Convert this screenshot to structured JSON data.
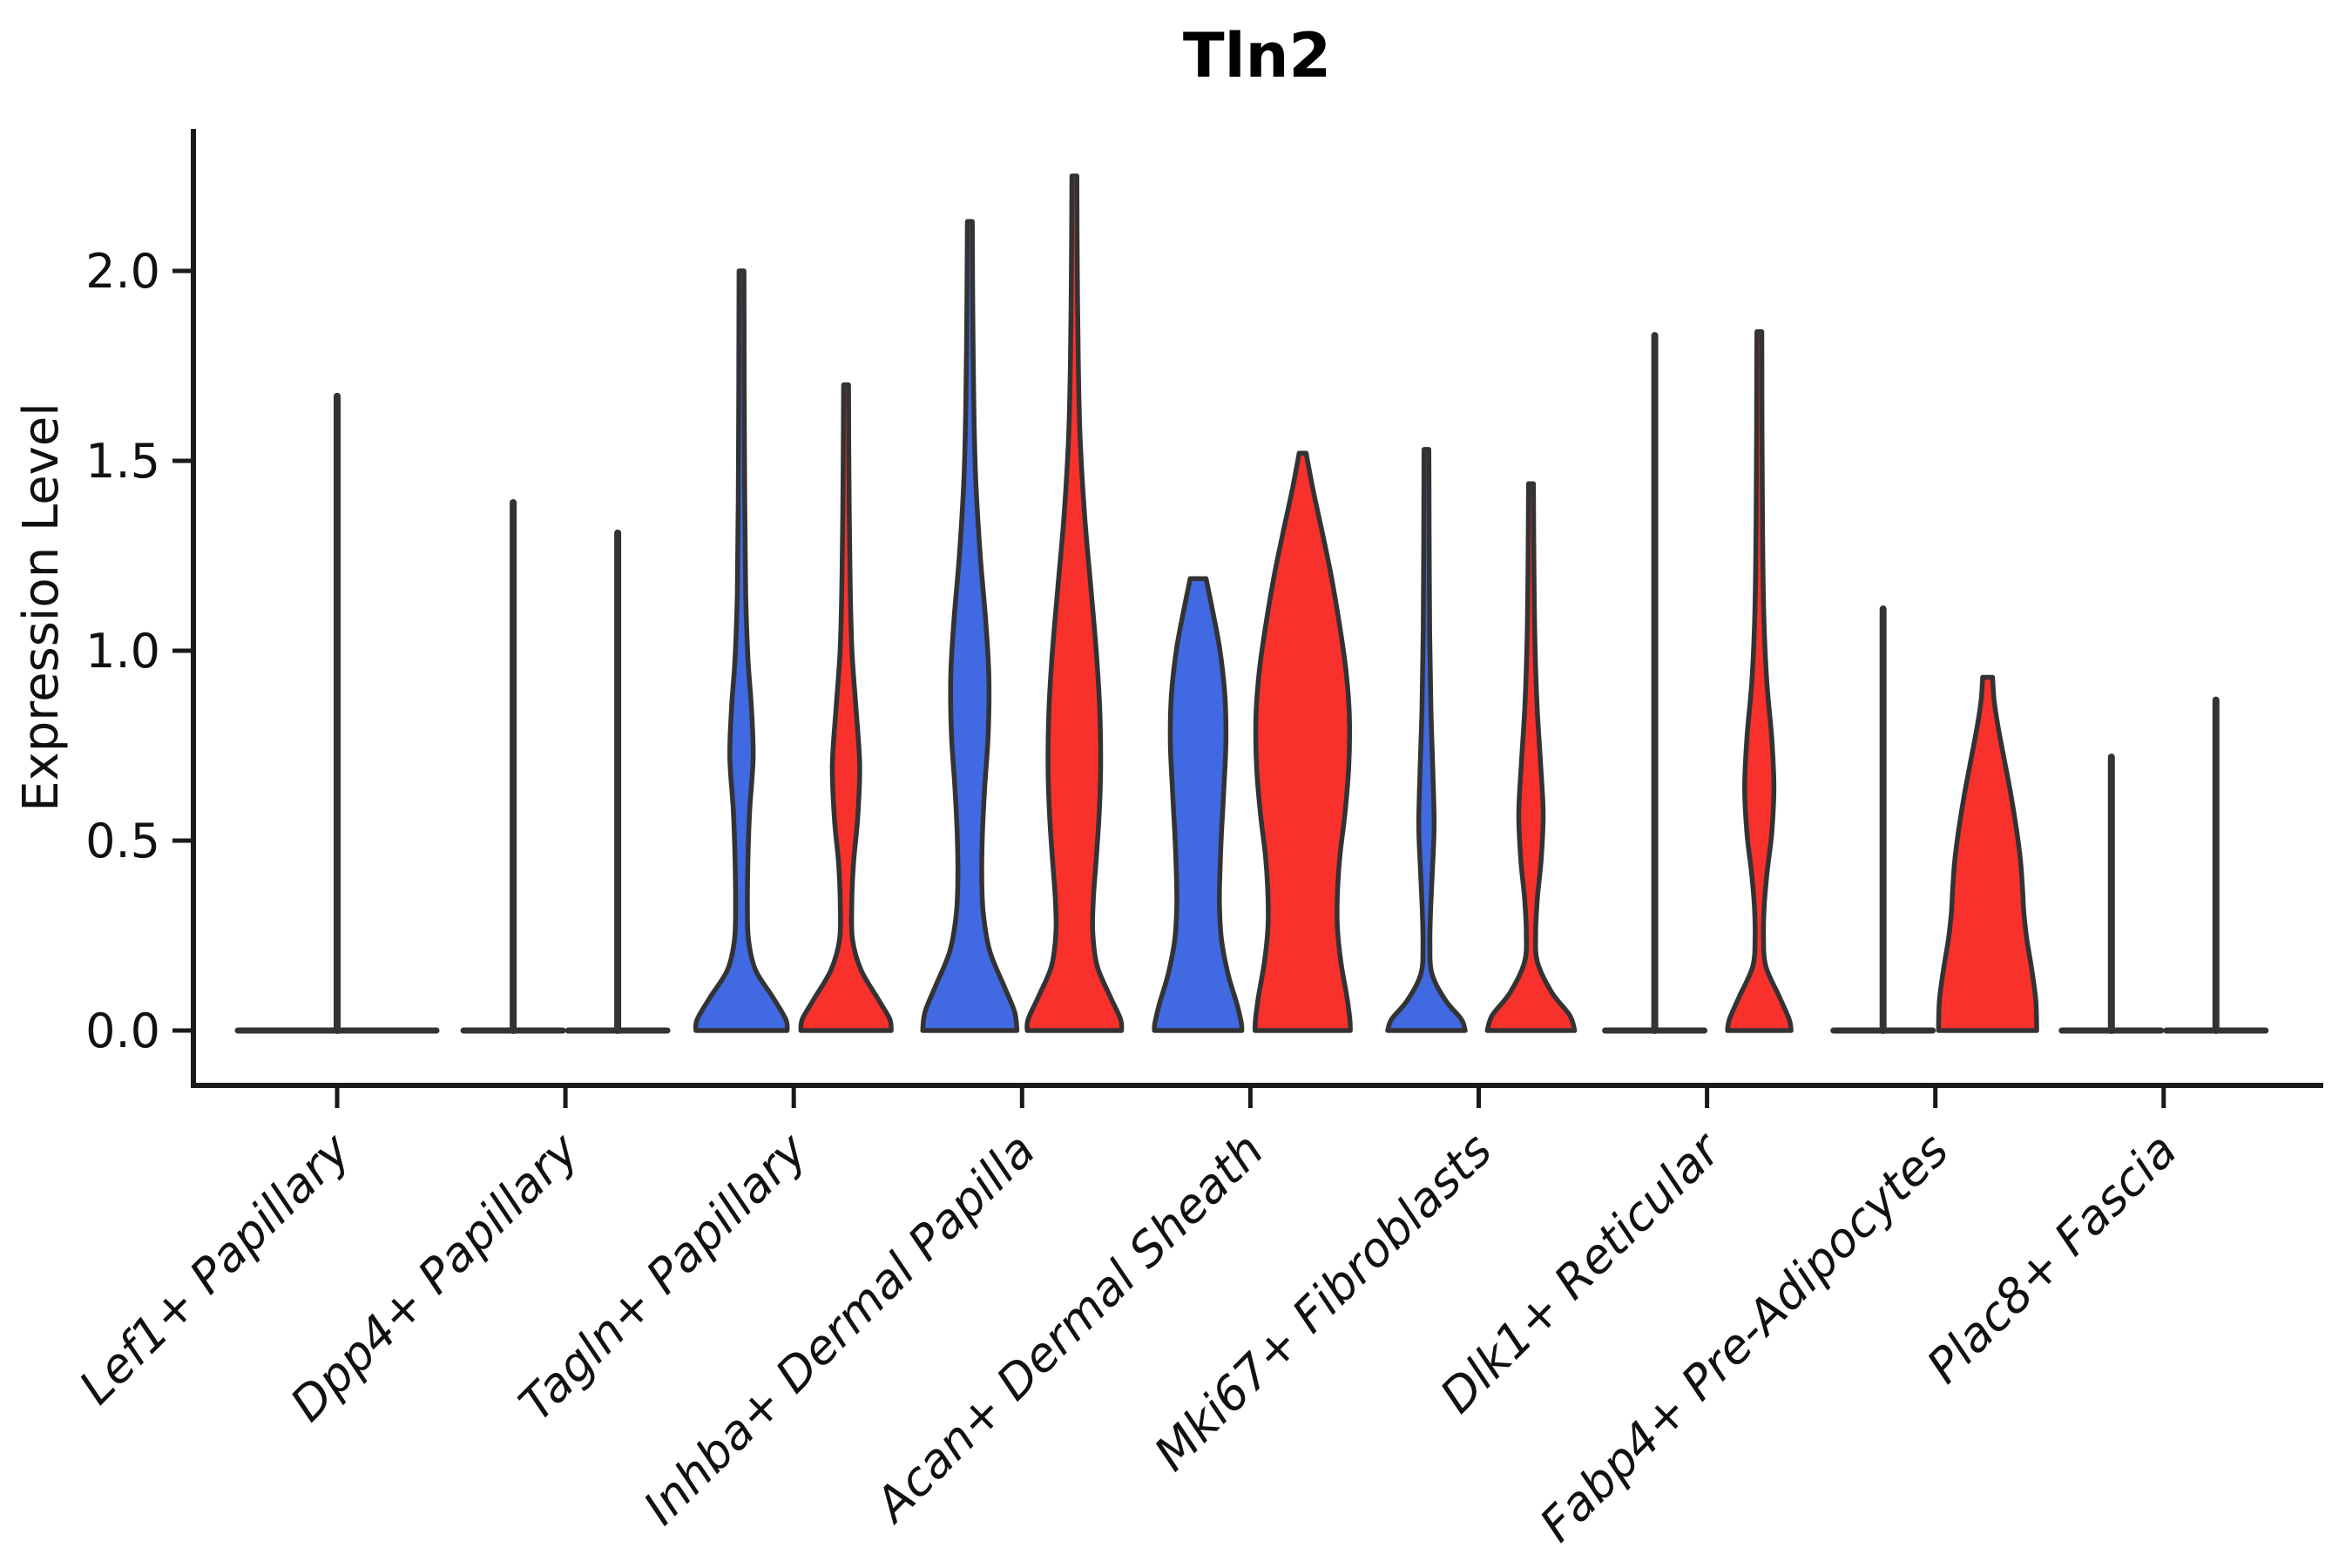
{
  "chart_data": {
    "type": "violin",
    "title": "Tln2",
    "xlabel": "",
    "ylabel": "Expression Level",
    "ytick_labels": [
      "0.0",
      "0.5",
      "1.0",
      "1.5",
      "2.0"
    ],
    "ylim": [
      -0.14,
      2.37
    ],
    "grid": false,
    "legend": null,
    "categories": [
      "Lef1+ Papillary",
      "Dpp4+ Papillary",
      "Tagln+ Papillary",
      "Inhba+ Dermal Papilla",
      "Acan+ Dermal Sheath",
      "Mki67+ Fibroblasts",
      "Dlk1+ Reticular",
      "Fabp4+ Pre-Adipocytes",
      "Plac8+ Fascia"
    ],
    "colors": {
      "blue": "#4169E1",
      "red": "#F8312D",
      "single": "#333333",
      "outline": "#333333"
    },
    "groups": [
      {
        "category": "Lef1+ Papillary",
        "violins": [
          {
            "split": "single",
            "style": "flat-spike",
            "max": 1.67
          }
        ]
      },
      {
        "category": "Dpp4+ Papillary",
        "violins": [
          {
            "split": "blue",
            "style": "flat-spike",
            "max": 1.39
          },
          {
            "split": "red",
            "style": "flat-spike",
            "max": 1.31
          }
        ]
      },
      {
        "category": "Tagln+ Papillary",
        "violins": [
          {
            "split": "blue",
            "style": "body",
            "max": 2.0,
            "profile": [
              [
                2.0,
                0.05
              ],
              [
                1.7,
                0.055
              ],
              [
                1.4,
                0.065
              ],
              [
                1.15,
                0.085
              ],
              [
                0.98,
                0.13
              ],
              [
                0.85,
                0.2
              ],
              [
                0.72,
                0.235
              ],
              [
                0.58,
                0.165
              ],
              [
                0.45,
                0.13
              ],
              [
                0.33,
                0.12
              ],
              [
                0.24,
                0.14
              ],
              [
                0.16,
                0.28
              ],
              [
                0.09,
                0.62
              ],
              [
                0.03,
                0.89
              ],
              [
                0.0,
                0.92
              ]
            ]
          },
          {
            "split": "red",
            "style": "body",
            "max": 1.7,
            "profile": [
              [
                1.7,
                0.05
              ],
              [
                1.45,
                0.06
              ],
              [
                1.2,
                0.08
              ],
              [
                1.0,
                0.12
              ],
              [
                0.85,
                0.2
              ],
              [
                0.7,
                0.275
              ],
              [
                0.56,
                0.235
              ],
              [
                0.44,
                0.15
              ],
              [
                0.33,
                0.115
              ],
              [
                0.24,
                0.13
              ],
              [
                0.16,
                0.3
              ],
              [
                0.08,
                0.66
              ],
              [
                0.03,
                0.88
              ],
              [
                0.0,
                0.91
              ]
            ]
          }
        ]
      },
      {
        "category": "Inhba+ Dermal Papilla",
        "violins": [
          {
            "split": "blue",
            "style": "body",
            "max": 2.13,
            "profile": [
              [
                2.13,
                0.05
              ],
              [
                1.9,
                0.06
              ],
              [
                1.65,
                0.08
              ],
              [
                1.45,
                0.12
              ],
              [
                1.25,
                0.21
              ],
              [
                1.08,
                0.32
              ],
              [
                0.93,
                0.385
              ],
              [
                0.78,
                0.37
              ],
              [
                0.64,
                0.3
              ],
              [
                0.52,
                0.255
              ],
              [
                0.41,
                0.24
              ],
              [
                0.31,
                0.27
              ],
              [
                0.21,
                0.4
              ],
              [
                0.12,
                0.68
              ],
              [
                0.05,
                0.9
              ],
              [
                0.0,
                0.95
              ]
            ]
          },
          {
            "split": "red",
            "style": "body",
            "max": 2.25,
            "profile": [
              [
                2.25,
                0.05
              ],
              [
                2.0,
                0.06
              ],
              [
                1.75,
                0.08
              ],
              [
                1.55,
                0.12
              ],
              [
                1.35,
                0.21
              ],
              [
                1.17,
                0.33
              ],
              [
                1.0,
                0.44
              ],
              [
                0.85,
                0.51
              ],
              [
                0.7,
                0.53
              ],
              [
                0.57,
                0.5
              ],
              [
                0.45,
                0.44
              ],
              [
                0.35,
                0.385
              ],
              [
                0.26,
                0.37
              ],
              [
                0.17,
                0.46
              ],
              [
                0.09,
                0.72
              ],
              [
                0.03,
                0.93
              ],
              [
                0.0,
                0.95
              ]
            ]
          }
        ]
      },
      {
        "category": "Acan+ Dermal Sheath",
        "violins": [
          {
            "split": "blue",
            "style": "body",
            "max": 1.19,
            "profile": [
              [
                1.19,
                0.16
              ],
              [
                1.1,
                0.3
              ],
              [
                1.0,
                0.44
              ],
              [
                0.88,
                0.54
              ],
              [
                0.76,
                0.56
              ],
              [
                0.64,
                0.52
              ],
              [
                0.52,
                0.47
              ],
              [
                0.42,
                0.44
              ],
              [
                0.33,
                0.43
              ],
              [
                0.24,
                0.47
              ],
              [
                0.15,
                0.6
              ],
              [
                0.07,
                0.78
              ],
              [
                0.02,
                0.87
              ],
              [
                0.0,
                0.88
              ]
            ]
          },
          {
            "split": "red",
            "style": "body",
            "max": 1.52,
            "profile": [
              [
                1.52,
                0.07
              ],
              [
                1.43,
                0.2
              ],
              [
                1.32,
                0.38
              ],
              [
                1.2,
                0.57
              ],
              [
                1.07,
                0.74
              ],
              [
                0.95,
                0.87
              ],
              [
                0.83,
                0.94
              ],
              [
                0.7,
                0.93
              ],
              [
                0.57,
                0.85
              ],
              [
                0.46,
                0.75
              ],
              [
                0.36,
                0.7
              ],
              [
                0.27,
                0.7
              ],
              [
                0.18,
                0.77
              ],
              [
                0.09,
                0.89
              ],
              [
                0.03,
                0.95
              ],
              [
                0.0,
                0.96
              ]
            ]
          }
        ]
      },
      {
        "category": "Mki67+ Fibroblasts",
        "violins": [
          {
            "split": "blue",
            "style": "body",
            "max": 1.53,
            "profile": [
              [
                1.53,
                0.05
              ],
              [
                1.3,
                0.055
              ],
              [
                1.05,
                0.065
              ],
              [
                0.85,
                0.09
              ],
              [
                0.68,
                0.13
              ],
              [
                0.54,
                0.155
              ],
              [
                0.42,
                0.12
              ],
              [
                0.32,
                0.085
              ],
              [
                0.23,
                0.07
              ],
              [
                0.15,
                0.11
              ],
              [
                0.08,
                0.38
              ],
              [
                0.03,
                0.7
              ],
              [
                0.0,
                0.78
              ]
            ]
          },
          {
            "split": "red",
            "style": "body",
            "max": 1.44,
            "profile": [
              [
                1.44,
                0.05
              ],
              [
                1.22,
                0.06
              ],
              [
                1.02,
                0.08
              ],
              [
                0.85,
                0.125
              ],
              [
                0.7,
                0.195
              ],
              [
                0.57,
                0.245
              ],
              [
                0.45,
                0.205
              ],
              [
                0.35,
                0.13
              ],
              [
                0.26,
                0.095
              ],
              [
                0.18,
                0.13
              ],
              [
                0.1,
                0.42
              ],
              [
                0.04,
                0.78
              ],
              [
                0.0,
                0.88
              ]
            ]
          }
        ]
      },
      {
        "category": "Dlk1+ Reticular",
        "violins": [
          {
            "split": "blue",
            "style": "flat-spike",
            "max": 1.83
          },
          {
            "split": "red",
            "style": "body",
            "max": 1.84,
            "profile": [
              [
                1.84,
                0.05
              ],
              [
                1.58,
                0.055
              ],
              [
                1.33,
                0.065
              ],
              [
                1.1,
                0.09
              ],
              [
                0.92,
                0.15
              ],
              [
                0.77,
                0.25
              ],
              [
                0.64,
                0.295
              ],
              [
                0.52,
                0.25
              ],
              [
                0.42,
                0.16
              ],
              [
                0.33,
                0.1
              ],
              [
                0.25,
                0.085
              ],
              [
                0.17,
                0.13
              ],
              [
                0.09,
                0.4
              ],
              [
                0.03,
                0.6
              ],
              [
                0.0,
                0.64
              ]
            ]
          }
        ]
      },
      {
        "category": "Fabp4+ Pre-Adipocytes",
        "violins": [
          {
            "split": "blue",
            "style": "flat-spike",
            "max": 1.11
          },
          {
            "split": "red",
            "style": "body",
            "max": 0.93,
            "profile": [
              [
                0.93,
                0.1
              ],
              [
                0.87,
                0.13
              ],
              [
                0.8,
                0.21
              ],
              [
                0.71,
                0.34
              ],
              [
                0.62,
                0.47
              ],
              [
                0.53,
                0.58
              ],
              [
                0.45,
                0.66
              ],
              [
                0.38,
                0.7
              ],
              [
                0.31,
                0.73
              ],
              [
                0.24,
                0.79
              ],
              [
                0.16,
                0.89
              ],
              [
                0.08,
                0.97
              ],
              [
                0.0,
                0.99
              ]
            ]
          }
        ]
      },
      {
        "category": "Plac8+ Fascia",
        "violins": [
          {
            "split": "blue",
            "style": "flat-spike",
            "max": 0.72
          },
          {
            "split": "red",
            "style": "flat-spike",
            "max": 0.87
          }
        ]
      }
    ]
  }
}
